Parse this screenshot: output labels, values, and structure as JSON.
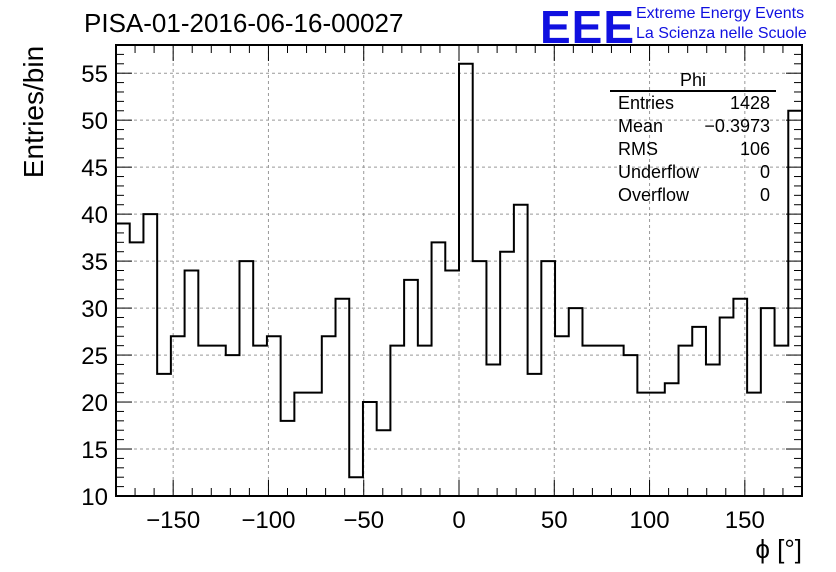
{
  "title": "PISA-01-2016-06-16-00027",
  "logo": {
    "mark": "EEE",
    "line1": "Extreme Energy Events",
    "line2": "La Scienza nelle Scuole",
    "color": "#1010e0"
  },
  "stats": {
    "title": "Phi",
    "rows": [
      {
        "label": "Entries",
        "value": "1428"
      },
      {
        "label": "Mean",
        "value": "−0.3973"
      },
      {
        "label": "RMS",
        "value": "106"
      },
      {
        "label": "Underflow",
        "value": "0"
      },
      {
        "label": "Overflow",
        "value": "0"
      }
    ]
  },
  "chart_data": {
    "type": "histogram",
    "title": "PISA-01-2016-06-16-00027",
    "xlabel": "ϕ [°]",
    "ylabel": "Entries/bin",
    "xlim": [
      -180,
      180
    ],
    "ylim": [
      10,
      58
    ],
    "xticks": [
      -150,
      -100,
      -50,
      0,
      50,
      100,
      150
    ],
    "xtick_labels": [
      "−150",
      "−100",
      "−50",
      "0",
      "50",
      "100",
      "150"
    ],
    "yticks": [
      10,
      15,
      20,
      25,
      30,
      35,
      40,
      45,
      50,
      55
    ],
    "grid": true,
    "bin_width": 7.2,
    "values": [
      39,
      37,
      40,
      23,
      27,
      34,
      26,
      26,
      25,
      35,
      26,
      27,
      18,
      21,
      21,
      27,
      31,
      12,
      20,
      17,
      26,
      33,
      26,
      37,
      34,
      56,
      35,
      24,
      36,
      41,
      23,
      35,
      27,
      30,
      26,
      26,
      26,
      25,
      21,
      21,
      22,
      26,
      28,
      24,
      29,
      31,
      21,
      30,
      26,
      51
    ],
    "line_color": "#000000"
  }
}
